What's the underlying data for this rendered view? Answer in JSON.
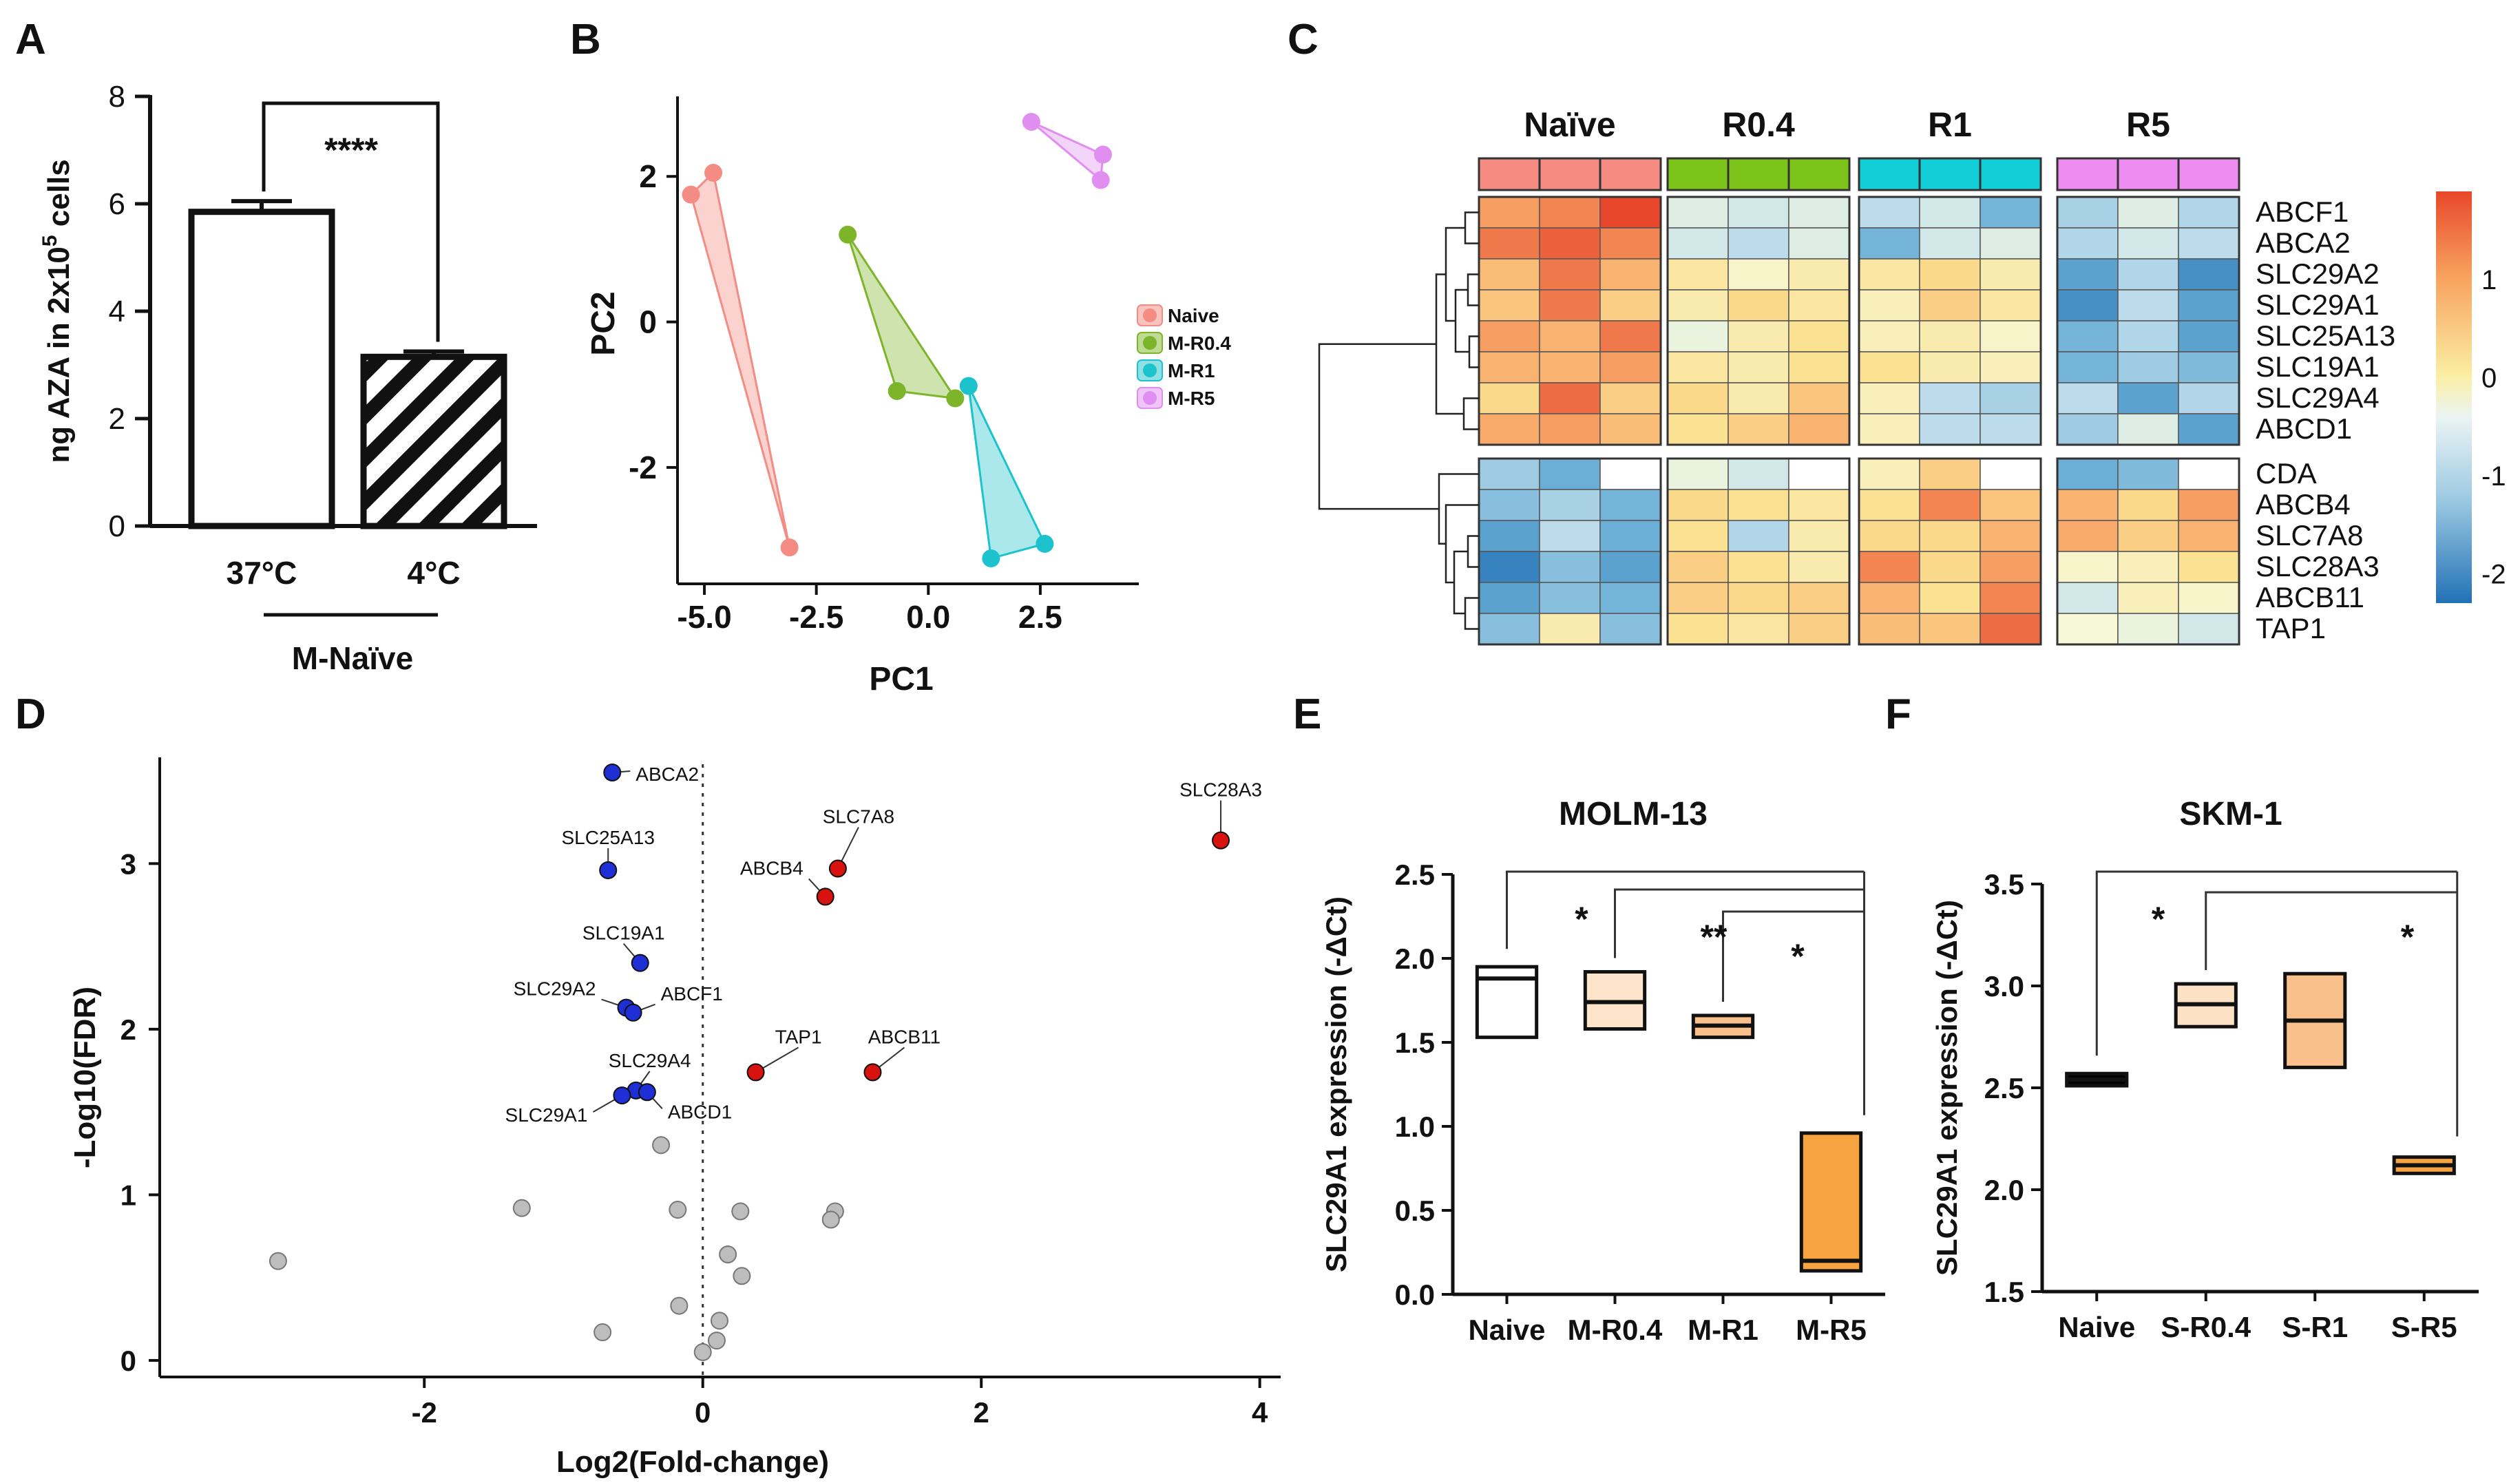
{
  "panel_labels": {
    "A": "A",
    "B": "B",
    "C": "C",
    "D": "D",
    "E": "E",
    "F": "F"
  },
  "chart_data": [
    {
      "id": "A",
      "type": "bar",
      "title": "",
      "ylabel": "ng AZA in 2x10^5 cells",
      "ylabel_parts": {
        "pre": "ng AZA in 2x10",
        "sup": "5",
        "post": " cells"
      },
      "ylim": [
        0,
        8
      ],
      "yticks": [
        0,
        2,
        4,
        6,
        8
      ],
      "categories": [
        "37°C",
        "4°C"
      ],
      "values": [
        5.85,
        3.15
      ],
      "errors": [
        0.2,
        0.1
      ],
      "fills": [
        "open",
        "hatched"
      ],
      "group_label": "M-Naïve",
      "significance": "****"
    },
    {
      "id": "B",
      "type": "scatter",
      "xlabel": "PC1",
      "ylabel": "PC2",
      "xlim": [
        -5.6,
        4.7
      ],
      "ylim": [
        -3.6,
        3.1
      ],
      "xticks": [
        -5.0,
        -2.5,
        0.0,
        2.5
      ],
      "xtick_labels": [
        "-5.0",
        "-2.5",
        "0.0",
        "2.5"
      ],
      "yticks": [
        -2,
        0,
        2
      ],
      "series": [
        {
          "name": "Naive",
          "color": "#F48C84",
          "fill": "#F9C3BE",
          "points": [
            [
              -5.3,
              1.75
            ],
            [
              -4.8,
              2.05
            ],
            [
              -3.1,
              -3.1
            ]
          ]
        },
        {
          "name": "M-R0.4",
          "color": "#7DB52A",
          "fill": "#BEDA93",
          "points": [
            [
              -1.8,
              1.2
            ],
            [
              -0.7,
              -0.95
            ],
            [
              0.6,
              -1.05
            ]
          ]
        },
        {
          "name": "M-R1",
          "color": "#1CC3CC",
          "fill": "#8EE0E4",
          "points": [
            [
              0.9,
              -0.88
            ],
            [
              1.4,
              -3.25
            ],
            [
              2.6,
              -3.05
            ]
          ]
        },
        {
          "name": "M-R5",
          "color": "#E08EF0",
          "fill": "#EFC6F7",
          "points": [
            [
              2.3,
              2.75
            ],
            [
              3.9,
              2.3
            ],
            [
              3.85,
              1.95
            ]
          ]
        }
      ]
    },
    {
      "id": "C",
      "type": "heatmap",
      "groups": [
        {
          "name": "Naïve",
          "color": "#F48C84"
        },
        {
          "name": "R0.4",
          "color": "#7DC41A"
        },
        {
          "name": "R1",
          "color": "#12CED6"
        },
        {
          "name": "R5",
          "color": "#EE8CF2"
        }
      ],
      "rows": [
        "ABCF1",
        "ABCA2",
        "SLC29A2",
        "SLC29A1",
        "SLC25A13",
        "SLC19A1",
        "SLC29A4",
        "ABCD1",
        "CDA",
        "ABCB4",
        "SLC7A8",
        "SLC28A3",
        "ABCB11",
        "TAP1"
      ],
      "row_split_after": 8,
      "values": [
        [
          1.2,
          1.4,
          1.9,
          -0.2,
          -0.3,
          -0.2,
          -0.5,
          -0.3,
          -1.2,
          -0.7,
          -0.2,
          -0.6
        ],
        [
          1.5,
          1.7,
          1.4,
          -0.3,
          -0.5,
          -0.2,
          -1.2,
          -0.3,
          -0.2,
          -0.6,
          -0.3,
          -0.5
        ],
        [
          0.9,
          1.5,
          1.0,
          0.4,
          0.1,
          0.3,
          0.4,
          0.6,
          0.3,
          -1.5,
          -0.6,
          -1.8
        ],
        [
          0.8,
          1.5,
          0.7,
          0.3,
          0.6,
          0.4,
          0.2,
          0.7,
          0.4,
          -1.8,
          -0.5,
          -1.5
        ],
        [
          1.2,
          1.0,
          1.5,
          -0.1,
          0.3,
          0.5,
          0.2,
          0.3,
          0.1,
          -1.2,
          -0.6,
          -1.5
        ],
        [
          1.0,
          1.0,
          1.2,
          0.4,
          0.3,
          0.5,
          0.5,
          0.3,
          0.2,
          -1.2,
          -0.8,
          -1.1
        ],
        [
          0.6,
          1.6,
          0.7,
          0.6,
          0.3,
          0.8,
          0.2,
          -0.5,
          -0.7,
          -0.5,
          -1.5,
          -0.6
        ],
        [
          1.1,
          1.2,
          0.9,
          0.5,
          0.7,
          1.0,
          0.2,
          -0.5,
          -0.5,
          -0.8,
          -0.2,
          -1.5
        ],
        [
          -0.8,
          -1.3,
          null,
          -0.1,
          -0.3,
          null,
          0.2,
          0.7,
          null,
          -1.3,
          -1.1,
          null
        ],
        [
          -1.0,
          -0.7,
          -1.2,
          0.6,
          0.5,
          0.4,
          0.5,
          1.4,
          0.8,
          1.0,
          0.6,
          1.2
        ],
        [
          -1.5,
          -0.5,
          -1.3,
          0.5,
          -0.6,
          0.3,
          0.6,
          0.6,
          1.0,
          1.1,
          0.7,
          1.0
        ],
        [
          -2.0,
          -1.0,
          -1.5,
          0.7,
          0.5,
          0.3,
          1.4,
          0.6,
          1.2,
          0.1,
          0.2,
          0.5
        ],
        [
          -1.5,
          -1.0,
          -1.2,
          0.7,
          0.6,
          0.7,
          1.0,
          0.5,
          1.4,
          -0.3,
          0.2,
          0.1
        ],
        [
          -1.0,
          0.3,
          -1.0,
          0.5,
          0.4,
          0.7,
          0.9,
          0.8,
          1.6,
          0.0,
          -0.1,
          -0.3
        ]
      ],
      "colorbar": {
        "min": -2.3,
        "max": 1.9,
        "ticks": [
          1,
          0,
          -1,
          -2
        ]
      }
    },
    {
      "id": "D",
      "type": "scatter",
      "title": "",
      "xlabel": "Log2(Fold-change)",
      "ylabel": "-Log10(FDR)",
      "xlim": [
        -3.9,
        4.15
      ],
      "ylim": [
        -0.1,
        3.6
      ],
      "xticks": [
        -2,
        0,
        2,
        4
      ],
      "yticks": [
        0,
        1,
        2,
        3
      ],
      "significant_points": [
        {
          "label": "ABCA2",
          "x": -0.65,
          "y": 3.55,
          "dir": "down"
        },
        {
          "label": "SLC25A13",
          "x": -0.68,
          "y": 2.96,
          "dir": "down"
        },
        {
          "label": "SLC19A1",
          "x": -0.45,
          "y": 2.4,
          "dir": "down"
        },
        {
          "label": "SLC29A2",
          "x": -0.55,
          "y": 2.13,
          "dir": "down"
        },
        {
          "label": "ABCF1",
          "x": -0.5,
          "y": 2.1,
          "dir": "down"
        },
        {
          "label": "SLC29A4",
          "x": -0.48,
          "y": 1.63,
          "dir": "down"
        },
        {
          "label": "SLC29A1",
          "x": -0.58,
          "y": 1.6,
          "dir": "down"
        },
        {
          "label": "ABCD1",
          "x": -0.4,
          "y": 1.62,
          "dir": "down"
        },
        {
          "label": "SLC7A8",
          "x": 0.97,
          "y": 2.97,
          "dir": "up"
        },
        {
          "label": "ABCB4",
          "x": 0.88,
          "y": 2.8,
          "dir": "up"
        },
        {
          "label": "SLC28A3",
          "x": 3.72,
          "y": 3.14,
          "dir": "up"
        },
        {
          "label": "TAP1",
          "x": 0.38,
          "y": 1.74,
          "dir": "up"
        },
        {
          "label": "ABCB11",
          "x": 1.22,
          "y": 1.74,
          "dir": "up"
        }
      ],
      "other_points": [
        [
          -3.05,
          0.6
        ],
        [
          -1.3,
          0.92
        ],
        [
          -0.3,
          1.3
        ],
        [
          -0.18,
          0.91
        ],
        [
          0.27,
          0.9
        ],
        [
          0.95,
          0.9
        ],
        [
          0.92,
          0.85
        ],
        [
          0.18,
          0.64
        ],
        [
          0.28,
          0.51
        ],
        [
          -0.17,
          0.33
        ],
        [
          -0.72,
          0.17
        ],
        [
          0.12,
          0.24
        ],
        [
          0.1,
          0.12
        ],
        [
          0.0,
          0.05
        ]
      ],
      "colors": {
        "down": "#1E2FD6",
        "up": "#D8120E",
        "other": "#BDBDBD"
      }
    },
    {
      "id": "E",
      "type": "box",
      "title": "MOLM-13",
      "ylabel": "SLC29A1 expression (-ΔCt)",
      "ylim": [
        0,
        2.5
      ],
      "yticks": [
        0.0,
        0.5,
        1.0,
        1.5,
        2.0,
        2.5
      ],
      "ytick_labels": [
        "0.0",
        "0.5",
        "1.0",
        "1.5",
        "2.0",
        "2.5"
      ],
      "categories": [
        "Naive",
        "M-R0.4",
        "M-R1",
        "M-R5"
      ],
      "boxes": [
        {
          "min": 1.53,
          "median": 1.88,
          "max": 1.95,
          "fill": "#FFFFFF"
        },
        {
          "min": 1.58,
          "median": 1.74,
          "max": 1.92,
          "fill": "#FDE5CC"
        },
        {
          "min": 1.53,
          "median": 1.6,
          "max": 1.66,
          "fill": "#F9C08B"
        },
        {
          "min": 0.14,
          "median": 0.2,
          "max": 0.96,
          "fill": "#F7A440"
        }
      ],
      "significance": [
        {
          "from": 0,
          "to": 3,
          "label": ""
        },
        {
          "from": 1,
          "to": 3,
          "label": "*"
        },
        {
          "from": 2,
          "to": 3,
          "label": "**"
        },
        {
          "from": 3,
          "to": 3,
          "label": "*"
        }
      ]
    },
    {
      "id": "F",
      "type": "box",
      "title": "SKM-1",
      "ylabel": "SLC29A1 expression (-ΔCt)",
      "ylim": [
        1.5,
        3.5
      ],
      "yticks": [
        1.5,
        2.0,
        2.5,
        3.0,
        3.5
      ],
      "ytick_labels": [
        "1.5",
        "2.0",
        "2.5",
        "3.0",
        "3.5"
      ],
      "categories": [
        "Naive",
        "S-R0.4",
        "S-R1",
        "S-R5"
      ],
      "boxes": [
        {
          "min": 2.51,
          "median": 2.54,
          "max": 2.57,
          "fill": "#000000"
        },
        {
          "min": 2.8,
          "median": 2.91,
          "max": 3.01,
          "fill": "#FDE1C5"
        },
        {
          "min": 2.6,
          "median": 2.83,
          "max": 3.06,
          "fill": "#F9C08B"
        },
        {
          "min": 2.08,
          "median": 2.12,
          "max": 2.16,
          "fill": "#F7A440"
        }
      ],
      "significance": [
        {
          "label": "*"
        },
        {
          "label": "*"
        }
      ]
    }
  ]
}
